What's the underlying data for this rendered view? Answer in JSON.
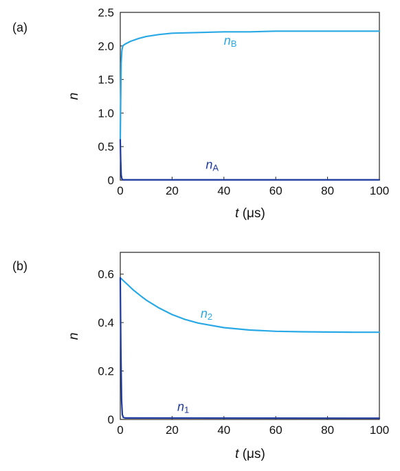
{
  "chart_data": [
    {
      "type": "line",
      "panel_label": "(a)",
      "xlabel": {
        "var": "t",
        "unit": "(μs)"
      },
      "ylabel": {
        "var": "n"
      },
      "xlim": [
        0,
        100
      ],
      "ylim": [
        0,
        2.5
      ],
      "xticks": [
        "0",
        "20",
        "40",
        "60",
        "80",
        "100"
      ],
      "yticks": [
        "0",
        "0.5",
        "1.0",
        "1.5",
        "2.0",
        "2.5"
      ],
      "series": [
        {
          "name": "nB",
          "label_main": "n",
          "label_sub": "B",
          "label_at": [
            40,
            2.02
          ],
          "color": "#29a8e6",
          "x": [
            0,
            0.15,
            0.35,
            0.6,
            0.9,
            1.2,
            2,
            4,
            7,
            10,
            15,
            20,
            30,
            40,
            50,
            60,
            80,
            100
          ],
          "y": [
            0.6,
            1.2,
            1.75,
            1.93,
            1.99,
            2.01,
            2.03,
            2.07,
            2.11,
            2.14,
            2.17,
            2.19,
            2.2,
            2.21,
            2.21,
            2.22,
            2.22,
            2.22
          ]
        },
        {
          "name": "nA",
          "label_main": "n",
          "label_sub": "A",
          "label_at": [
            33,
            0.17
          ],
          "color": "#1e3a9e",
          "x": [
            0,
            0.15,
            0.35,
            0.6,
            1,
            100
          ],
          "y": [
            0.6,
            0.3,
            0.08,
            0.02,
            0.005,
            0.005
          ]
        }
      ]
    },
    {
      "type": "line",
      "panel_label": "(b)",
      "xlabel": {
        "var": "t",
        "unit": "(μs)"
      },
      "ylabel": {
        "var": "n"
      },
      "xlim": [
        0,
        100
      ],
      "ylim": [
        0,
        0.69
      ],
      "xticks": [
        "0",
        "20",
        "40",
        "60",
        "80",
        "100"
      ],
      "yticks": [
        "0",
        "0.2",
        "0.4",
        "0.6"
      ],
      "series": [
        {
          "name": "n2",
          "label_main": "n",
          "label_sub": "2",
          "label_at": [
            31,
            0.42
          ],
          "color": "#29a8e6",
          "x": [
            0,
            2,
            5,
            8,
            10,
            15,
            20,
            25,
            30,
            40,
            50,
            60,
            70,
            80,
            90,
            100
          ],
          "y": [
            0.585,
            0.565,
            0.535,
            0.509,
            0.493,
            0.46,
            0.433,
            0.413,
            0.398,
            0.379,
            0.369,
            0.364,
            0.362,
            0.361,
            0.36,
            0.36
          ]
        },
        {
          "name": "n1",
          "label_main": "n",
          "label_sub": "1",
          "label_at": [
            22,
            0.035
          ],
          "color": "#1e3a9e",
          "x": [
            0,
            0.2,
            0.5,
            0.8,
            1.2,
            2,
            100
          ],
          "y": [
            0.585,
            0.3,
            0.08,
            0.02,
            0.008,
            0.006,
            0.005
          ]
        }
      ]
    }
  ]
}
